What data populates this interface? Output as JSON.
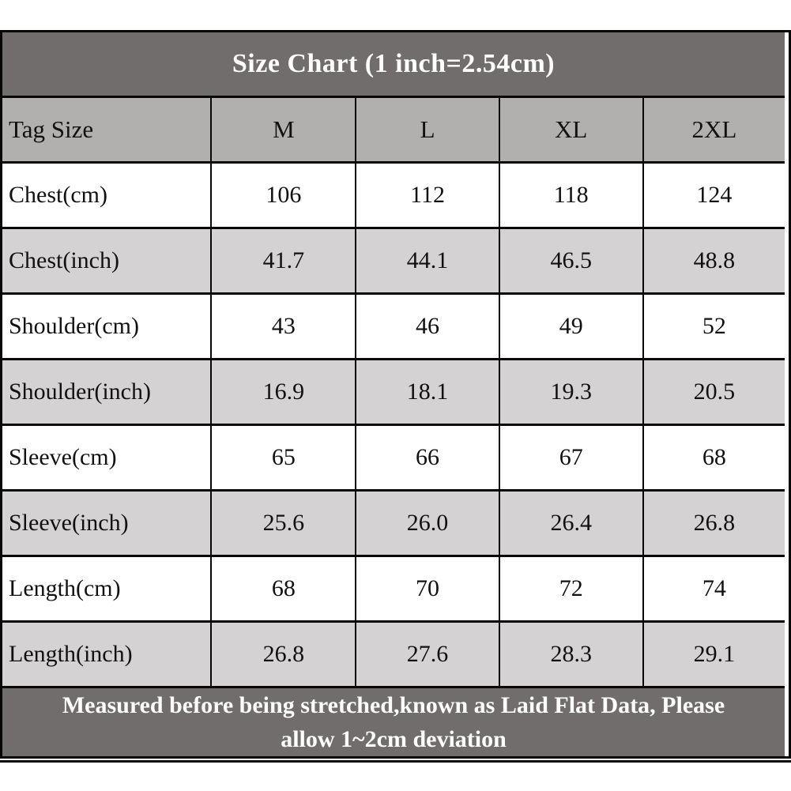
{
  "colors": {
    "title_band_bg": "#716d6d",
    "header_row_bg": "#b2afaf",
    "alt_row_bg": "#d4d2d2",
    "plain_row_bg": "#ffffff",
    "border": "#070707",
    "title_text": "#ffffff",
    "cell_text": "#111111"
  },
  "chart_data": {
    "type": "table",
    "title": "Size Chart (1 inch=2.54cm)",
    "columns": [
      "Tag Size",
      "M",
      "L",
      "XL",
      "2XL"
    ],
    "rows": [
      {
        "label": "Chest(cm)",
        "values": [
          "106",
          "112",
          "118",
          "124"
        ]
      },
      {
        "label": "Chest(inch)",
        "values": [
          "41.7",
          "44.1",
          "46.5",
          "48.8"
        ]
      },
      {
        "label": "Shoulder(cm)",
        "values": [
          "43",
          "46",
          "49",
          "52"
        ]
      },
      {
        "label": "Shoulder(inch)",
        "values": [
          "16.9",
          "18.1",
          "19.3",
          "20.5"
        ]
      },
      {
        "label": "Sleeve(cm)",
        "values": [
          "65",
          "66",
          "67",
          "68"
        ]
      },
      {
        "label": "Sleeve(inch)",
        "values": [
          "25.6",
          "26.0",
          "26.4",
          "26.8"
        ]
      },
      {
        "label": "Length(cm)",
        "values": [
          "68",
          "70",
          "72",
          "74"
        ]
      },
      {
        "label": "Length(inch)",
        "values": [
          "26.8",
          "27.6",
          "28.3",
          "29.1"
        ]
      }
    ],
    "footer_text": "Measured before being stretched,known as Laid Flat Data, Please allow 1~2cm deviation",
    "footer_lines": [
      "Measured before being stretched,known as Laid Flat Data, Please",
      "allow 1~2cm deviation"
    ]
  }
}
